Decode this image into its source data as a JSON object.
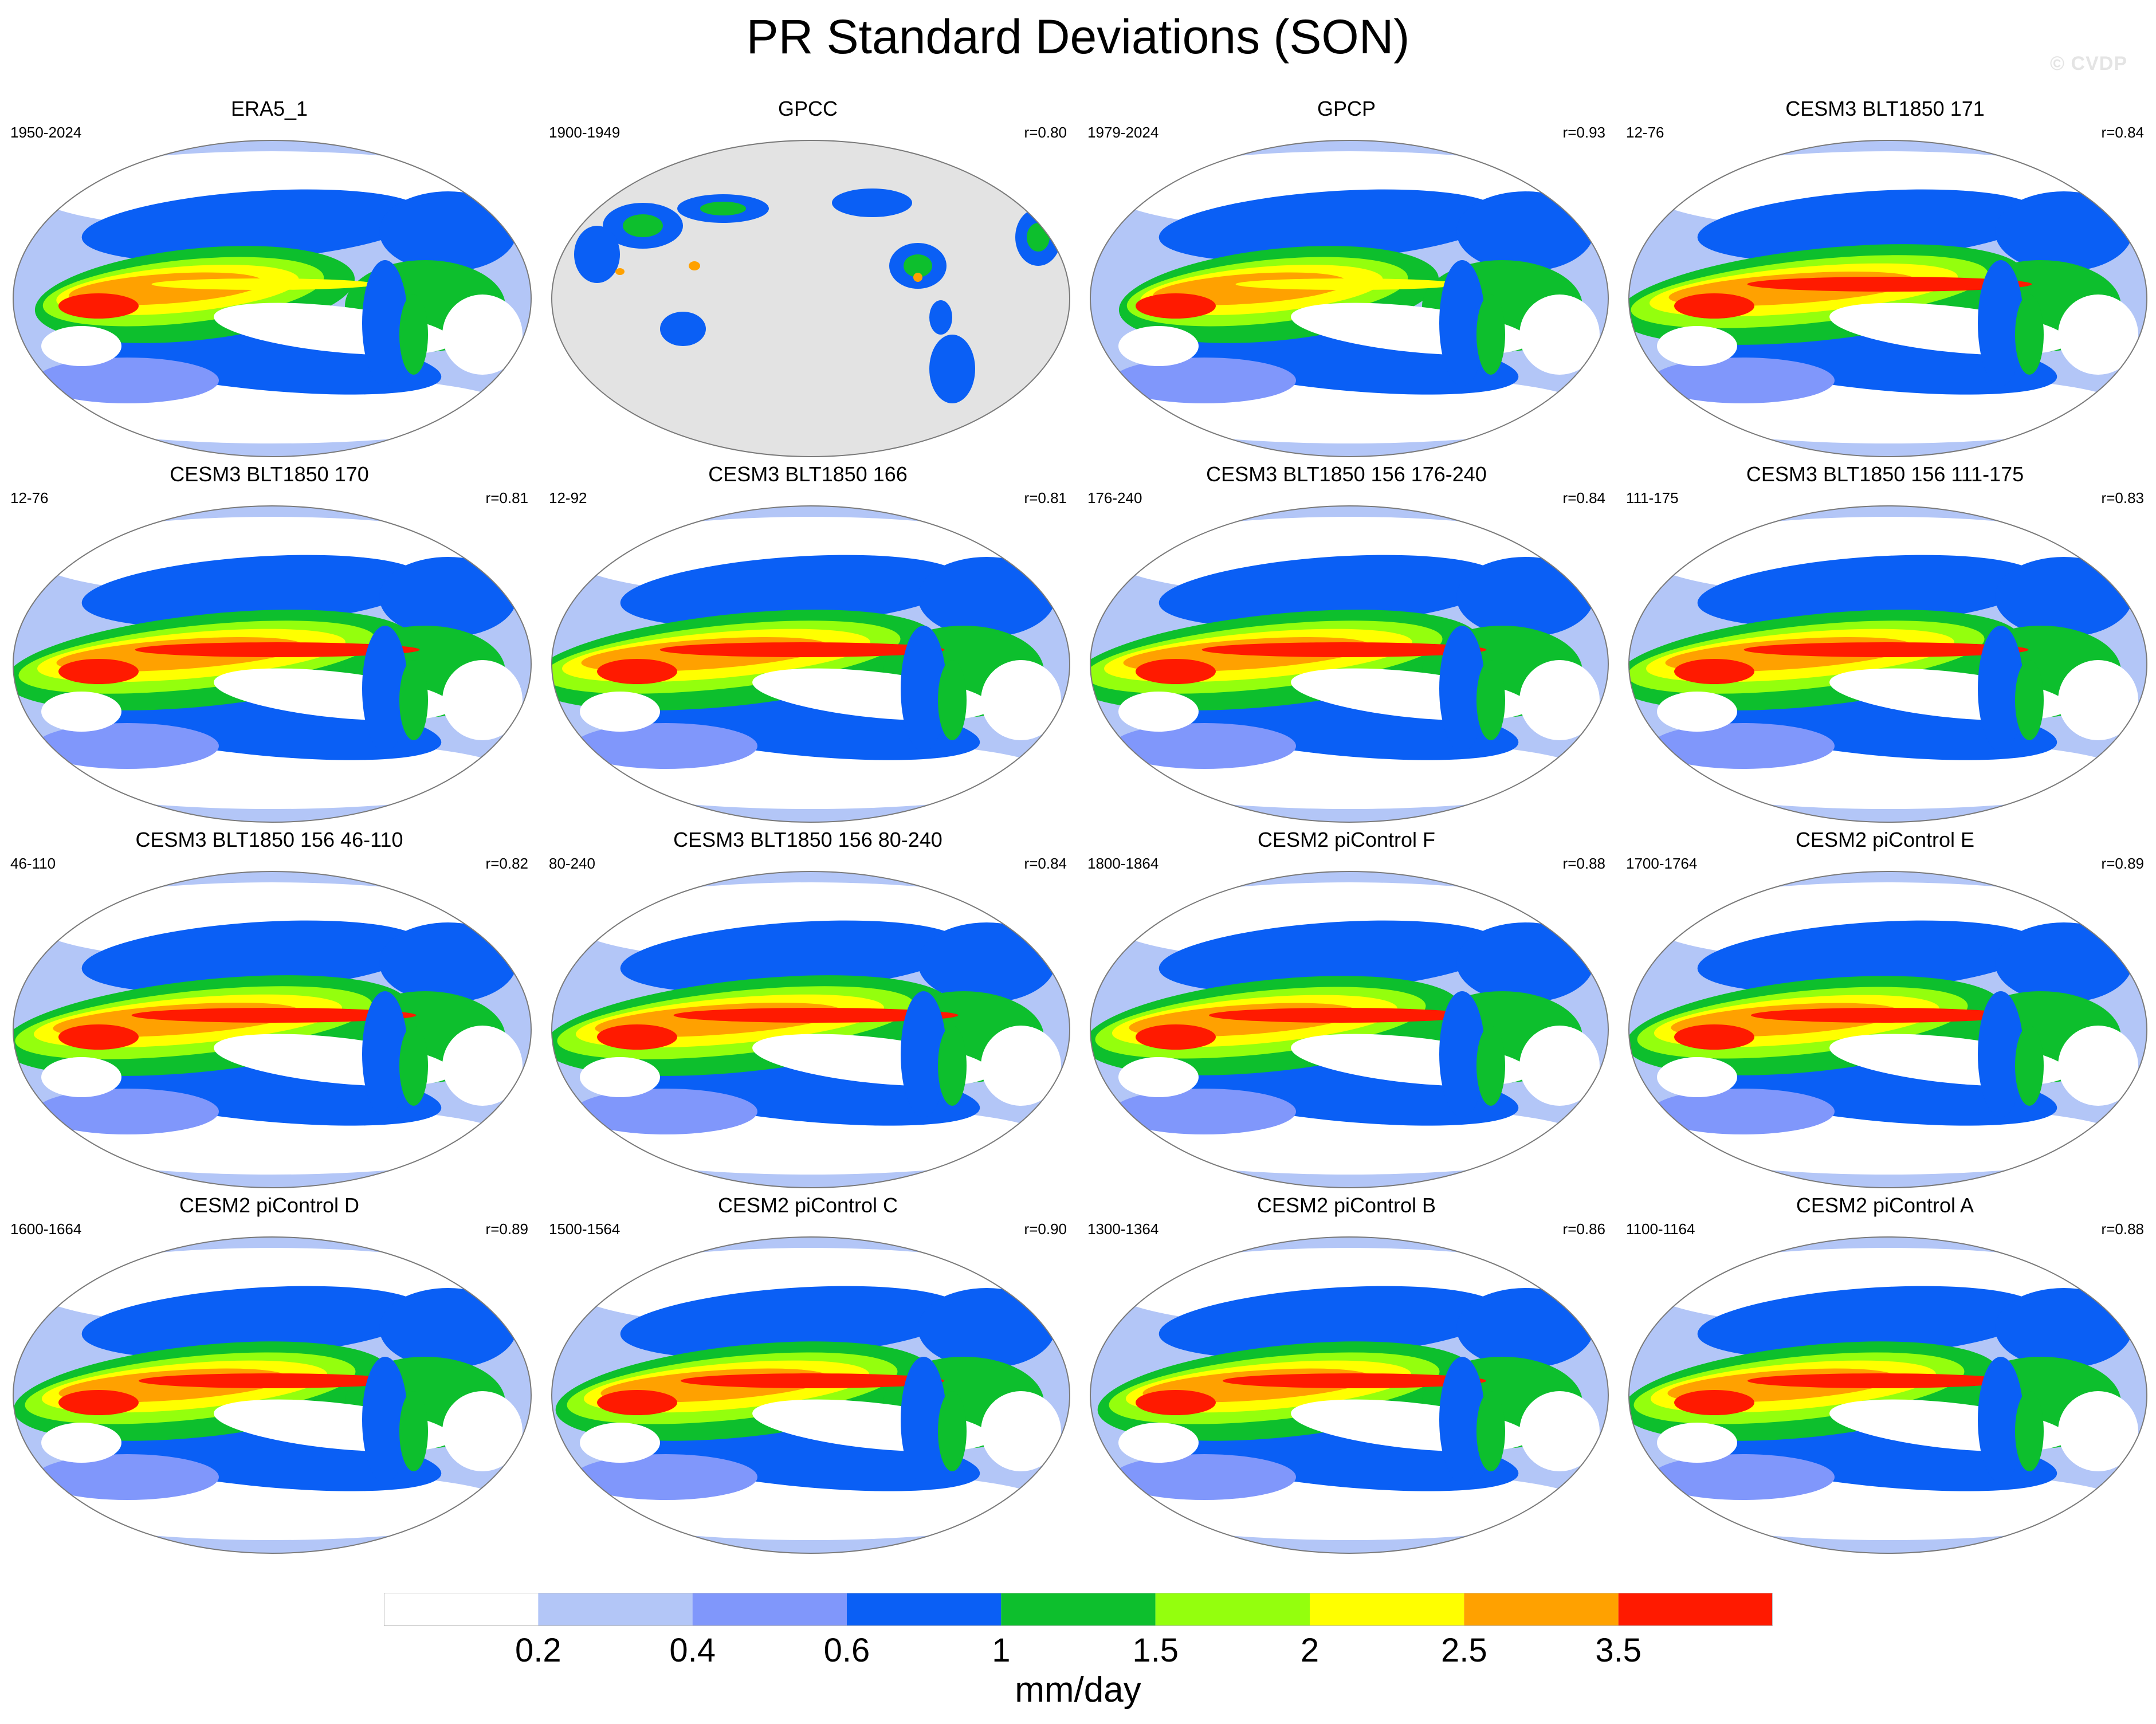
{
  "title": "PR Standard Deviations (SON)",
  "watermark": "© CVDP",
  "panels": [
    {
      "title": "ERA5_1",
      "years": "1950-2024",
      "r": "",
      "variant": "obs"
    },
    {
      "title": "GPCC",
      "years": "1900-1949",
      "r": "r=0.80",
      "variant": "land"
    },
    {
      "title": "GPCP",
      "years": "1979-2024",
      "r": "r=0.93",
      "variant": "obs"
    },
    {
      "title": "CESM3 BLT1850 171",
      "years": "12-76",
      "r": "r=0.84",
      "variant": "model"
    },
    {
      "title": "CESM3 BLT1850 170",
      "years": "12-76",
      "r": "r=0.81",
      "variant": "model"
    },
    {
      "title": "CESM3 BLT1850 166",
      "years": "12-92",
      "r": "r=0.81",
      "variant": "model"
    },
    {
      "title": "CESM3 BLT1850 156 176-240",
      "years": "176-240",
      "r": "r=0.84",
      "variant": "model"
    },
    {
      "title": "CESM3 BLT1850 156 111-175",
      "years": "111-175",
      "r": "r=0.83",
      "variant": "model"
    },
    {
      "title": "CESM3 BLT1850 156 46-110",
      "years": "46-110",
      "r": "r=0.82",
      "variant": "model"
    },
    {
      "title": "CESM3 BLT1850 156 80-240",
      "years": "80-240",
      "r": "r=0.84",
      "variant": "model"
    },
    {
      "title": "CESM2 piControl F",
      "years": "1800-1864",
      "r": "r=0.88",
      "variant": "model2"
    },
    {
      "title": "CESM2 piControl E",
      "years": "1700-1764",
      "r": "r=0.89",
      "variant": "model2"
    },
    {
      "title": "CESM2 piControl D",
      "years": "1600-1664",
      "r": "r=0.89",
      "variant": "model2"
    },
    {
      "title": "CESM2 piControl C",
      "years": "1500-1564",
      "r": "r=0.90",
      "variant": "model2"
    },
    {
      "title": "CESM2 piControl B",
      "years": "1300-1364",
      "r": "r=0.86",
      "variant": "model2"
    },
    {
      "title": "CESM2 piControl A",
      "years": "1100-1164",
      "r": "r=0.88",
      "variant": "model2"
    }
  ],
  "colorbar": {
    "colors": [
      "#ffffff",
      "#b3c6f7",
      "#8097fb",
      "#0a5ff5",
      "#0dbf2d",
      "#94ff0d",
      "#ffff00",
      "#ffa100",
      "#ff1a00"
    ],
    "tick_labels": [
      "0.2",
      "0.4",
      "0.6",
      "1",
      "1.5",
      "2",
      "2.5",
      "3.5"
    ],
    "unit": "mm/day"
  },
  "colors": {
    "missing_data": "#e3e3e3",
    "map_outline": "#7a7a7a"
  }
}
